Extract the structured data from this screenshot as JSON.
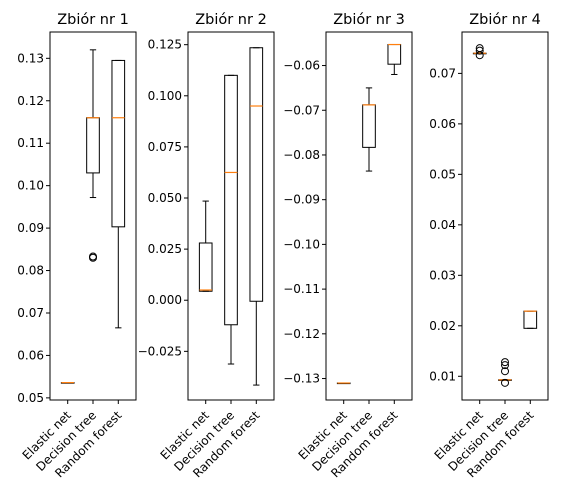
{
  "figure": {
    "colors": {
      "box": "#000000",
      "median": "#ff7f0e",
      "background": "#ffffff"
    }
  },
  "chart_data": [
    {
      "type": "box",
      "title": "Zbiór nr 1",
      "categories": [
        "Elastic net",
        "Decision tree",
        "Random forest"
      ],
      "ylim": [
        0.0495,
        0.1362
      ],
      "yticks": [
        0.05,
        0.06,
        0.07,
        0.08,
        0.09,
        0.1,
        0.11,
        0.12,
        0.13
      ],
      "yticklabels": [
        "0.05",
        "0.06",
        "0.07",
        "0.08",
        "0.09",
        "0.10",
        "0.11",
        "0.12",
        "0.13"
      ],
      "boxes": [
        {
          "whislo": 0.0536,
          "q1": 0.0536,
          "med": 0.0536,
          "q3": 0.0536,
          "whishi": 0.0536,
          "fliers": []
        },
        {
          "whislo": 0.0972,
          "q1": 0.103,
          "med": 0.116,
          "q3": 0.116,
          "whishi": 0.132,
          "fliers": [
            0.083,
            0.0833
          ]
        },
        {
          "whislo": 0.0665,
          "q1": 0.0903,
          "med": 0.116,
          "q3": 0.1295,
          "whishi": 0.1295,
          "fliers": []
        }
      ]
    },
    {
      "type": "box",
      "title": "Zbiór nr 2",
      "categories": [
        "Elastic net",
        "Decision tree",
        "Random forest"
      ],
      "ylim": [
        -0.0488,
        0.1312
      ],
      "yticks": [
        -0.025,
        0.0,
        0.025,
        0.05,
        0.075,
        0.1,
        0.125
      ],
      "yticklabels": [
        "−0.025",
        "0.000",
        "0.025",
        "0.050",
        "0.075",
        "0.100",
        "0.125"
      ],
      "boxes": [
        {
          "whislo": 0.0044,
          "q1": 0.0044,
          "med": 0.005,
          "q3": 0.028,
          "whishi": 0.0485,
          "fliers": []
        },
        {
          "whislo": -0.0312,
          "q1": -0.012,
          "med": 0.0625,
          "q3": 0.11,
          "whishi": 0.11,
          "fliers": []
        },
        {
          "whislo": -0.0415,
          "q1": -0.0005,
          "med": 0.095,
          "q3": 0.1235,
          "whishi": 0.1235,
          "fliers": []
        }
      ]
    },
    {
      "type": "box",
      "title": "Zbiór nr 3",
      "categories": [
        "Elastic net",
        "Decision tree",
        "Random forest"
      ],
      "ylim": [
        -0.1348,
        -0.0525
      ],
      "yticks": [
        -0.06,
        -0.07,
        -0.08,
        -0.09,
        -0.1,
        -0.11,
        -0.12,
        -0.13
      ],
      "yticklabels": [
        "−0.06",
        "−0.07",
        "−0.08",
        "−0.09",
        "−0.10",
        "−0.11",
        "−0.12",
        "−0.13"
      ],
      "boxes": [
        {
          "whislo": -0.131,
          "q1": -0.131,
          "med": -0.131,
          "q3": -0.131,
          "whishi": -0.131,
          "fliers": []
        },
        {
          "whislo": -0.0836,
          "q1": -0.0783,
          "med": -0.0688,
          "q3": -0.0688,
          "whishi": -0.065,
          "fliers": []
        },
        {
          "whislo": -0.062,
          "q1": -0.0597,
          "med": -0.0553,
          "q3": -0.0553,
          "whishi": -0.0553,
          "fliers": []
        }
      ]
    },
    {
      "type": "box",
      "title": "Zbiór nr 4",
      "categories": [
        "Elastic net",
        "Decision tree",
        "Random forest"
      ],
      "ylim": [
        0.0053,
        0.0782
      ],
      "yticks": [
        0.01,
        0.02,
        0.03,
        0.04,
        0.05,
        0.06,
        0.07
      ],
      "yticklabels": [
        "0.01",
        "0.02",
        "0.03",
        "0.04",
        "0.05",
        "0.06",
        "0.07"
      ],
      "boxes": [
        {
          "whislo": 0.074,
          "q1": 0.074,
          "med": 0.074,
          "q3": 0.074,
          "whishi": 0.074,
          "fliers": [
            0.0745,
            0.075,
            0.0736
          ]
        },
        {
          "whislo": 0.0093,
          "q1": 0.0093,
          "med": 0.0093,
          "q3": 0.0093,
          "whishi": 0.0093,
          "fliers": [
            0.0128,
            0.0122,
            0.011,
            0.0087
          ]
        },
        {
          "whislo": 0.0195,
          "q1": 0.0195,
          "med": 0.0229,
          "q3": 0.0229,
          "whishi": 0.0229,
          "fliers": []
        }
      ]
    }
  ]
}
